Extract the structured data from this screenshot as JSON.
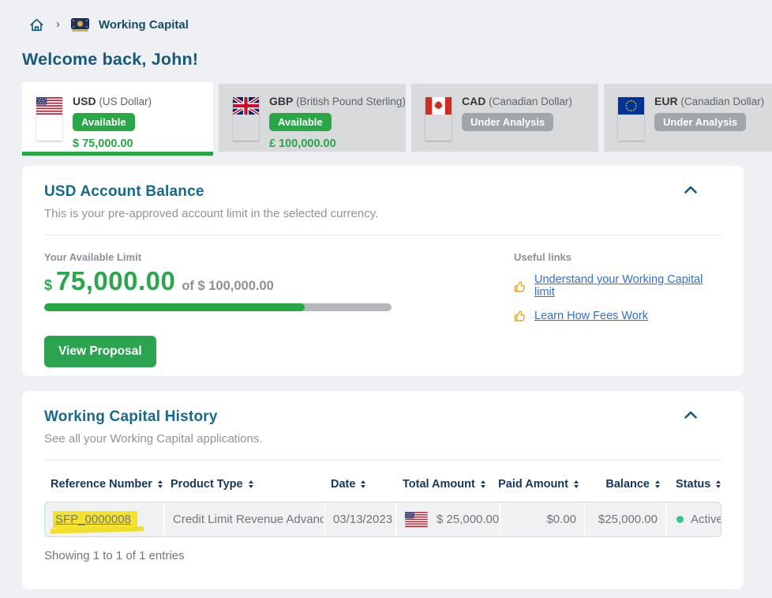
{
  "breadcrumb": {
    "current": "Working Capital"
  },
  "welcome_title": "Welcome back, John!",
  "currency_cards": [
    {
      "code": "USD",
      "name": "(US Dollar)",
      "status_label": "Available",
      "amount": "$ 75,000.00"
    },
    {
      "code": "GBP",
      "name": "(British Pound Sterling)",
      "status_label": "Available",
      "amount": "£ 100,000.00"
    },
    {
      "code": "CAD",
      "name": "(Canadian Dollar)",
      "status_label": "Under Analysis",
      "amount": ""
    },
    {
      "code": "EUR",
      "name": "(Canadian Dollar)",
      "status_label": "Under Analysis",
      "amount": ""
    }
  ],
  "balance_panel": {
    "title": "USD Account Balance",
    "subtitle": "This is your pre-approved account limit in the selected currency.",
    "limit_label": "Your Available Limit",
    "currency_symbol": "$",
    "amount": "75,000.00",
    "of_text": "of $ 100,000.00",
    "progress_percent": 75,
    "button_label": "View Proposal",
    "useful_links_label": "Useful links",
    "links": [
      {
        "label": "Understand your Working Capital limit"
      },
      {
        "label": "Learn How Fees Work"
      }
    ]
  },
  "history_panel": {
    "title": "Working Capital History",
    "subtitle": "See all your Working Capital applications.",
    "columns": [
      "Reference Number",
      "Product Type",
      "Date",
      "Total Amount",
      "Paid Amount",
      "Balance",
      "Status"
    ],
    "rows": [
      {
        "reference": "SFP_0000008",
        "product_type": "Credit Limit Revenue Advance",
        "date": "03/13/2023",
        "total_amount": "$ 25,000.00",
        "paid_amount": "$0.00",
        "balance": "$25,000.00",
        "status": "Active"
      }
    ],
    "footer_text": "Showing 1 to 1 of 1 entries"
  },
  "colors": {
    "accent_green": "#28a745",
    "heading_teal": "#17698d",
    "table_header_navy": "#16365c",
    "link_blue": "#2e6fe0",
    "highlight_yellow": "#f4e22d",
    "status_active_green": "#2ec98c",
    "under_analysis_gray": "#a1a6ab"
  }
}
